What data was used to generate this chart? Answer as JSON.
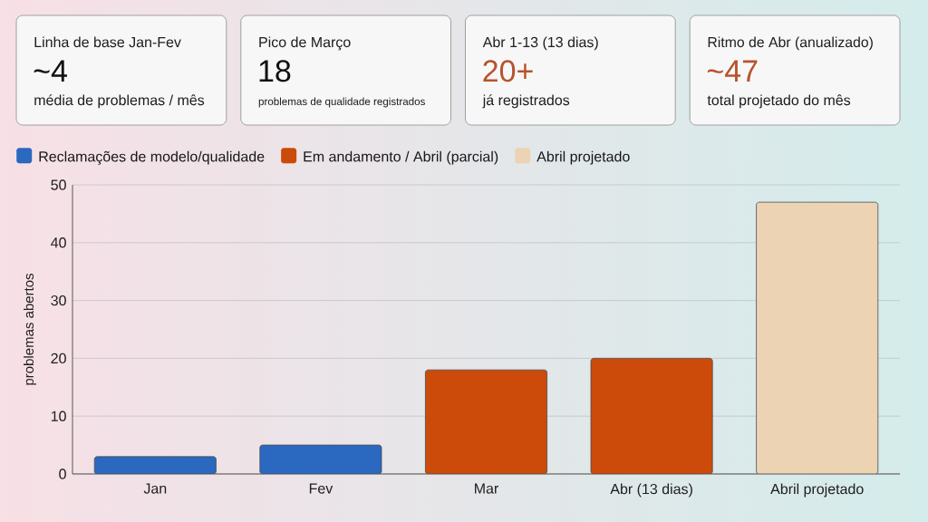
{
  "chart_data": [
    {
      "type": "other",
      "title": "Linha de base Jan-Fev",
      "annotations": [
        "~4",
        "média de problemas / mês"
      ],
      "color": "#111111"
    },
    {
      "type": "other",
      "title": "Pico de Março",
      "annotations": [
        "18",
        "problemas de qualidade registrados"
      ],
      "color": "#111111"
    },
    {
      "type": "other",
      "title": "Abr 1-13 (13 dias)",
      "annotations": [
        "20+",
        "já registrados"
      ],
      "color": "#b8522c"
    },
    {
      "type": "other",
      "title": "Ritmo de Abr (anualizado)",
      "annotations": [
        "~47",
        "total projetado do mês"
      ],
      "color": "#b8522c"
    },
    {
      "type": "bar",
      "categories": [
        "Jan",
        "Fev",
        "Mar",
        "Abr (13 dias)",
        "Abril projetado"
      ],
      "series": [
        {
          "name": "Reclamações de modelo/qualidade",
          "color": "#2b68bf",
          "values": [
            3,
            5,
            null,
            null,
            null
          ]
        },
        {
          "name": "Em andamento / Abril (parcial)",
          "color": "#cc4a0a",
          "values": [
            null,
            null,
            18,
            20,
            null
          ]
        },
        {
          "name": "Abril projetado",
          "color": "#ecd3b4",
          "values": [
            null,
            null,
            null,
            null,
            47
          ]
        }
      ],
      "ylabel": "problemas abertos",
      "ylim": [
        0,
        50
      ],
      "yticks": [
        0,
        10,
        20,
        30,
        40,
        50
      ],
      "grid": "y",
      "legend": "top left"
    }
  ]
}
